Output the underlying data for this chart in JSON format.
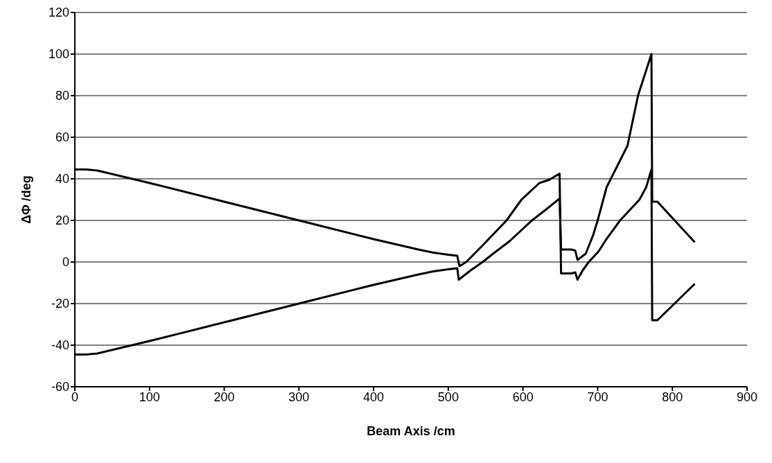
{
  "chart_data": {
    "type": "line",
    "xlabel": "Beam Axis  /cm",
    "ylabel": "ΔΦ  /deg",
    "xlim": [
      0,
      900
    ],
    "xticks": [
      0,
      100,
      200,
      300,
      400,
      500,
      600,
      700,
      800,
      900
    ],
    "ylim": [
      -60,
      120
    ],
    "yticks": [
      -60,
      -40,
      -20,
      0,
      20,
      40,
      60,
      80,
      100,
      120
    ],
    "grid": "y",
    "marker": "none",
    "line_style": "solid",
    "series": [
      {
        "color": "#000000",
        "x": [
          0,
          15,
          30,
          100,
          200,
          300,
          400,
          460,
          480,
          500,
          512,
          515,
          524,
          546,
          578,
          598,
          610,
          622,
          635,
          649,
          651,
          665,
          670,
          673,
          680,
          688,
          701,
          711,
          730,
          756,
          765,
          772,
          773,
          780,
          830
        ],
        "values": [
          44.5,
          44.5,
          44,
          38,
          29,
          20,
          11,
          6,
          4.5,
          3.5,
          3,
          -2,
          0,
          8,
          20,
          30,
          34,
          38,
          39.5,
          42.5,
          -5.5,
          -5.5,
          -5,
          -8.5,
          -4,
          0,
          5,
          10.6,
          20,
          30,
          36,
          44.5,
          -28,
          -28,
          -10.5
        ]
      },
      {
        "color": "#000000",
        "x": [
          0,
          15,
          30,
          100,
          200,
          300,
          400,
          460,
          480,
          500,
          512,
          514,
          530,
          546,
          560,
          582,
          600,
          612,
          630,
          649,
          651,
          665,
          670,
          673,
          684,
          694,
          700,
          712,
          740,
          754,
          772,
          773,
          780,
          830
        ],
        "values": [
          -44.5,
          -44.5,
          -44,
          -38,
          -29,
          -20,
          -11,
          -6,
          -4.5,
          -3.5,
          -3,
          -8.5,
          -4,
          0,
          4,
          10,
          16,
          20,
          25,
          30.5,
          6,
          6,
          5.5,
          1,
          4,
          13,
          20,
          36,
          56,
          80,
          100,
          29,
          29,
          9.5
        ]
      }
    ]
  }
}
